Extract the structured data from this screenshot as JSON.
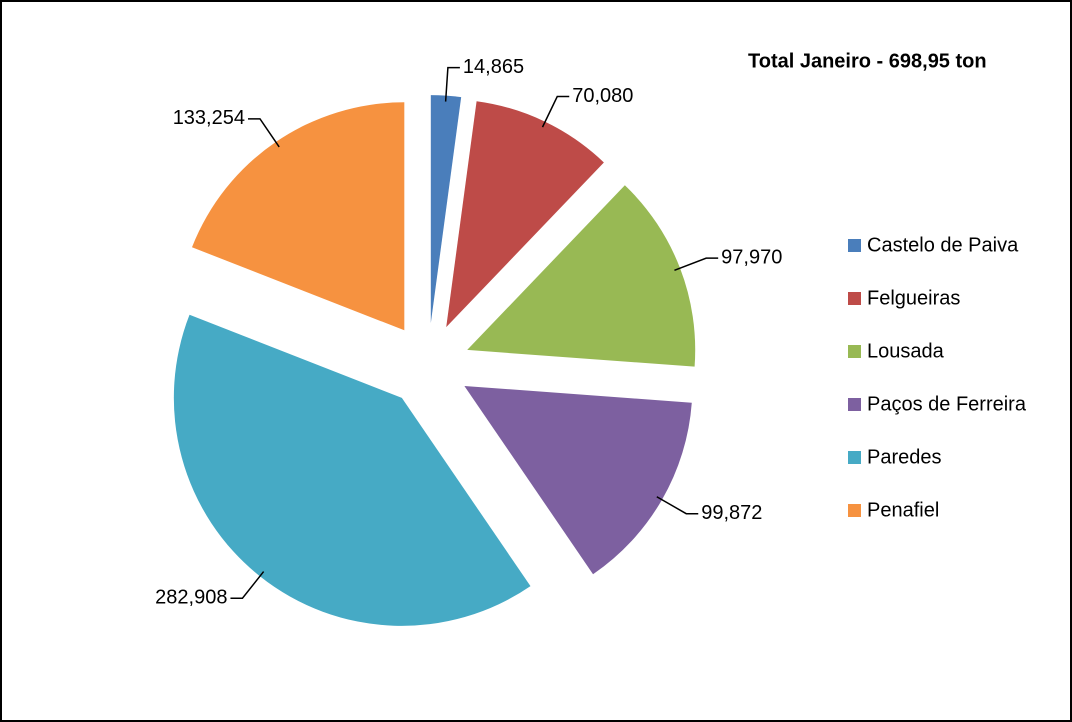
{
  "chart_data": {
    "type": "pie",
    "title": "Total Janeiro - 698,95 ton",
    "categories": [
      "Castelo de Paiva",
      "Felgueiras",
      "Lousada",
      "Paços de Ferreira",
      "Paredes",
      "Penafiel"
    ],
    "values": [
      14.865,
      70.08,
      97.97,
      99.872,
      282.908,
      133.254
    ],
    "value_labels": [
      "14,865",
      "70,080",
      "97,970",
      "99,872",
      "282,908",
      "133,254"
    ],
    "colors": [
      "#4a7ebb",
      "#be4b48",
      "#98b954",
      "#7d60a0",
      "#46aac5",
      "#f69240"
    ],
    "legend": "right"
  }
}
